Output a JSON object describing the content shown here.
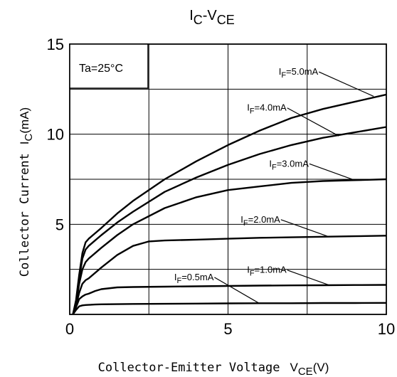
{
  "chart_data": {
    "type": "line",
    "title": {
      "main": "I",
      "sub": "C",
      "mid": "-V",
      "sub2": "CE"
    },
    "xlabel": {
      "text": "Collector-Emitter Voltage",
      "sym": "V",
      "sub": "CE",
      "unit": "(V)"
    },
    "ylabel": {
      "text": "Collector Current",
      "sym": "I",
      "sub": "C",
      "unit": "(mA)"
    },
    "xlim": [
      0,
      10
    ],
    "ylim": [
      0,
      15
    ],
    "xticks": [
      0,
      5,
      10
    ],
    "xtick_labels": [
      "0",
      "5",
      "10"
    ],
    "yticks": [
      5,
      10,
      15
    ],
    "ytick_labels": [
      "5",
      "10",
      "15"
    ],
    "grid": true,
    "grid_x": [
      2.5,
      5,
      7.5
    ],
    "grid_y": [
      2.5,
      5,
      7.5,
      10,
      12.5
    ],
    "condition": "Ta=25°C",
    "series": [
      {
        "name": "IF=5.0mA",
        "label_sym": "I",
        "label_sub": "F",
        "label_val": "=5.0mA",
        "x": [
          0.1,
          0.2,
          0.3,
          0.4,
          0.5,
          0.6,
          0.8,
          1.0,
          1.5,
          2,
          3,
          4,
          5,
          6,
          7,
          8,
          9,
          10
        ],
        "y": [
          0.0,
          0.8,
          2.2,
          3.4,
          4.0,
          4.2,
          4.5,
          4.8,
          5.6,
          6.3,
          7.5,
          8.5,
          9.4,
          10.2,
          10.9,
          11.4,
          11.8,
          12.2
        ],
        "label_x": 6.6,
        "label_y": 13.3,
        "pointer_x": 9.6,
        "pointer_y": 12.1
      },
      {
        "name": "IF=4.0mA",
        "label_sym": "I",
        "label_sub": "F",
        "label_val": "=4.0mA",
        "x": [
          0.1,
          0.2,
          0.3,
          0.4,
          0.5,
          0.6,
          0.8,
          1.0,
          1.5,
          2,
          3,
          4,
          5,
          6,
          7,
          8,
          9,
          10
        ],
        "y": [
          0.0,
          0.7,
          2.0,
          3.1,
          3.6,
          3.8,
          4.1,
          4.4,
          5.1,
          5.7,
          6.8,
          7.6,
          8.3,
          8.9,
          9.4,
          9.8,
          10.1,
          10.4
        ],
        "label_x": 5.6,
        "label_y": 11.3,
        "pointer_x": 8.5,
        "pointer_y": 9.9
      },
      {
        "name": "IF=3.0mA",
        "label_sym": "I",
        "label_sub": "F",
        "label_val": "=3.0mA",
        "x": [
          0.1,
          0.2,
          0.3,
          0.4,
          0.5,
          0.6,
          0.8,
          1.0,
          1.5,
          2,
          3,
          4,
          5,
          6,
          7,
          8,
          9,
          10
        ],
        "y": [
          0.0,
          0.6,
          1.7,
          2.5,
          2.9,
          3.1,
          3.4,
          3.7,
          4.4,
          5.0,
          5.9,
          6.5,
          6.9,
          7.1,
          7.3,
          7.4,
          7.45,
          7.5
        ],
        "label_x": 6.3,
        "label_y": 8.2,
        "pointer_x": 9.0,
        "pointer_y": 7.45
      },
      {
        "name": "IF=2.0mA",
        "label_sym": "I",
        "label_sub": "F",
        "label_val": "=2.0mA",
        "x": [
          0.1,
          0.2,
          0.3,
          0.4,
          0.5,
          0.6,
          0.8,
          1.0,
          1.5,
          2,
          2.5,
          3,
          4,
          5,
          6,
          7,
          8,
          9,
          10
        ],
        "y": [
          0.0,
          0.5,
          1.2,
          1.7,
          1.9,
          2.0,
          2.3,
          2.6,
          3.3,
          3.8,
          4.05,
          4.1,
          4.15,
          4.2,
          4.25,
          4.28,
          4.31,
          4.34,
          4.37
        ],
        "label_x": 5.4,
        "label_y": 5.1,
        "pointer_x": 8.2,
        "pointer_y": 4.3
      },
      {
        "name": "IF=1.0mA",
        "label_sym": "I",
        "label_sub": "F",
        "label_val": "=1.0mA",
        "x": [
          0.1,
          0.2,
          0.3,
          0.4,
          0.5,
          0.6,
          0.8,
          1.0,
          1.5,
          2,
          3,
          4,
          5,
          6,
          7,
          8,
          9,
          10
        ],
        "y": [
          0.0,
          0.4,
          0.85,
          1.0,
          1.1,
          1.15,
          1.3,
          1.4,
          1.5,
          1.52,
          1.54,
          1.56,
          1.58,
          1.6,
          1.61,
          1.62,
          1.63,
          1.64
        ],
        "label_x": 5.6,
        "label_y": 2.3,
        "pointer_x": 8.2,
        "pointer_y": 1.62
      },
      {
        "name": "IF=0.5mA",
        "label_sym": "I",
        "label_sub": "F",
        "label_val": "=0.5mA",
        "x": [
          0.1,
          0.2,
          0.3,
          0.4,
          0.5,
          0.6,
          0.8,
          1.0,
          1.5,
          2,
          3,
          4,
          5,
          6,
          7,
          8,
          9,
          10
        ],
        "y": [
          0.0,
          0.25,
          0.45,
          0.5,
          0.52,
          0.53,
          0.55,
          0.56,
          0.57,
          0.58,
          0.59,
          0.6,
          0.61,
          0.62,
          0.62,
          0.63,
          0.63,
          0.64
        ],
        "label_x": 3.3,
        "label_y": 1.9,
        "pointer_x": 6.0,
        "pointer_y": 0.6
      }
    ]
  }
}
